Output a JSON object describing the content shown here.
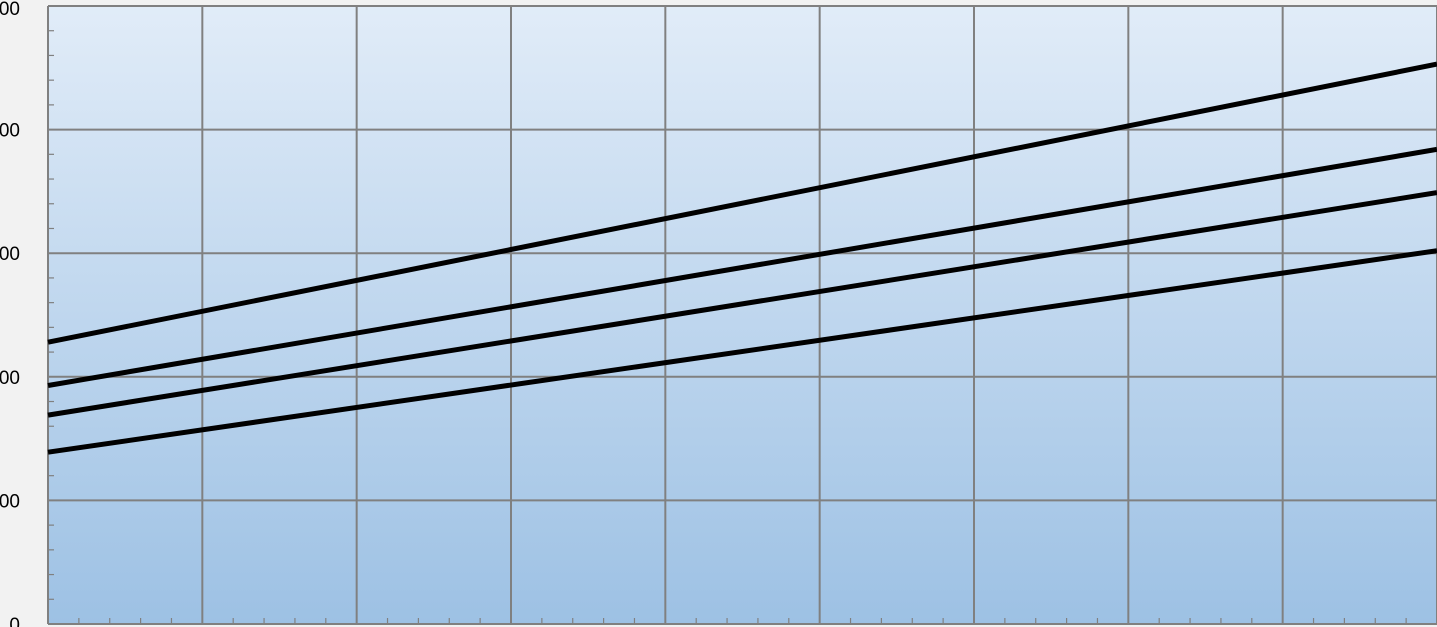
{
  "chart_data": {
    "type": "line",
    "title": "",
    "xlabel": "",
    "ylabel": "",
    "grid": true,
    "legend": "none",
    "ylim": [
      0,
      500
    ],
    "xlim": [
      0,
      9
    ],
    "y_tick_labels": [
      "00",
      "00",
      "00",
      "00",
      "00",
      "0"
    ],
    "series": [
      {
        "x": [
          0,
          9
        ],
        "y": [
          228,
          453
        ],
        "color": "#000000"
      },
      {
        "x": [
          0,
          9
        ],
        "y": [
          193,
          384
        ],
        "color": "#000000"
      },
      {
        "x": [
          0,
          9
        ],
        "y": [
          169,
          349
        ],
        "color": "#000000"
      },
      {
        "x": [
          0,
          9
        ],
        "y": [
          139,
          302
        ],
        "color": "#000000"
      }
    ],
    "colors": {
      "plot_top": "#e1ecf8",
      "plot_bottom": "#9dc1e4",
      "grid": "#808080",
      "page": "#f2f2f2"
    }
  }
}
